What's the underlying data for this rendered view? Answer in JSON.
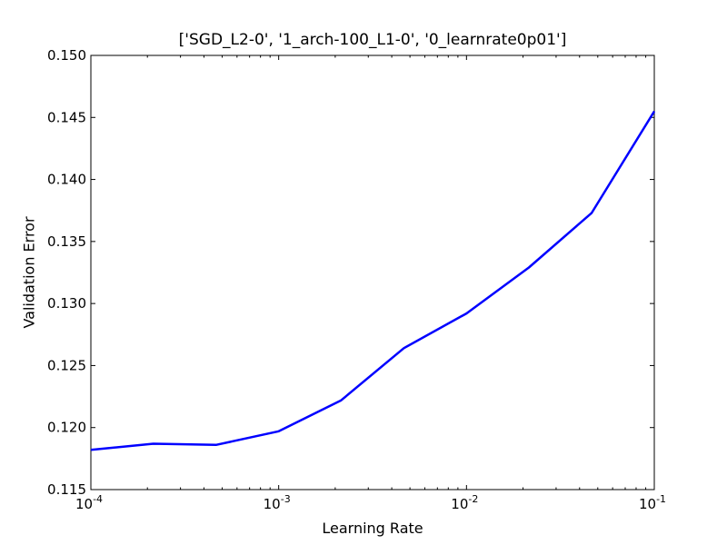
{
  "chart_data": {
    "type": "line",
    "title": "['SGD_L2-0', '1_arch-100_L1-0', '0_learnrate0p01']",
    "xlabel": "Learning Rate",
    "ylabel": "Validation Error",
    "xscale": "log",
    "xlim": [
      0.0001,
      0.1
    ],
    "ylim": [
      0.115,
      0.15
    ],
    "grid": false,
    "x_ticks": [
      {
        "base": "10",
        "exp": "-4",
        "value": 0.0001
      },
      {
        "base": "10",
        "exp": "-3",
        "value": 0.001
      },
      {
        "base": "10",
        "exp": "-2",
        "value": 0.01
      },
      {
        "base": "10",
        "exp": "-1",
        "value": 0.1
      }
    ],
    "y_ticks": [
      "0.115",
      "0.120",
      "0.125",
      "0.130",
      "0.135",
      "0.140",
      "0.145",
      "0.150"
    ],
    "series": [
      {
        "color": "#0000ff",
        "x": [
          0.0001,
          0.000215,
          0.000464,
          0.001,
          0.00215,
          0.00464,
          0.01,
          0.0215,
          0.0464,
          0.1
        ],
        "y": [
          0.1182,
          0.1187,
          0.1186,
          0.1197,
          0.1222,
          0.1264,
          0.1292,
          0.1329,
          0.1373,
          0.1455
        ]
      }
    ]
  }
}
